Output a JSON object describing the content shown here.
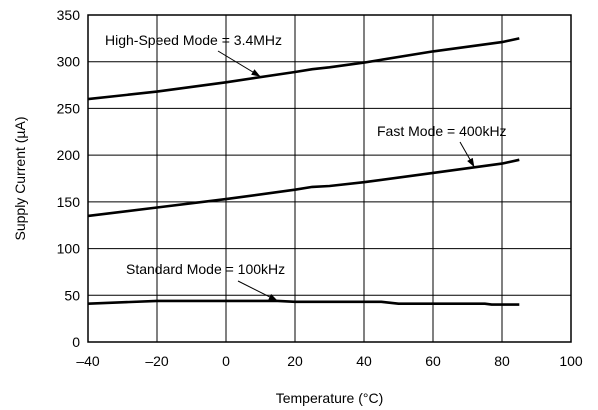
{
  "chart_data": {
    "type": "line",
    "title": "",
    "xlabel": "Temperature (°C)",
    "ylabel": "Supply Current (µA)",
    "xlim": [
      -40,
      100
    ],
    "ylim": [
      0,
      350
    ],
    "xticks": [
      -40,
      -20,
      0,
      20,
      40,
      60,
      80,
      100
    ],
    "xtick_labels": [
      "–40",
      "–20",
      "0",
      "20",
      "40",
      "60",
      "80",
      "100"
    ],
    "yticks": [
      0,
      50,
      100,
      150,
      200,
      250,
      300,
      350
    ],
    "ytick_labels": [
      "0",
      "50",
      "100",
      "150",
      "200",
      "250",
      "300",
      "350"
    ],
    "grid": true,
    "legend": "none",
    "series": [
      {
        "name": "High-Speed Mode = 3.4MHz",
        "x": [
          -40,
          -20,
          0,
          20,
          25,
          30,
          40,
          60,
          80,
          85
        ],
        "y": [
          260,
          268,
          278,
          289,
          292,
          294,
          299,
          311,
          321,
          325
        ]
      },
      {
        "name": "Fast Mode = 400kHz",
        "x": [
          -40,
          -20,
          0,
          20,
          25,
          30,
          40,
          60,
          80,
          85
        ],
        "y": [
          135,
          144,
          153,
          163,
          166,
          167,
          171,
          181,
          191,
          195
        ]
      },
      {
        "name": "Standard Mode = 100kHz",
        "x": [
          -40,
          -20,
          0,
          15,
          20,
          40,
          45,
          50,
          60,
          75,
          77,
          85
        ],
        "y": [
          41,
          44,
          44,
          44,
          43,
          43,
          43,
          41,
          41,
          41,
          40,
          40
        ]
      }
    ],
    "annotations": [
      {
        "text": "High-Speed Mode = 3.4MHz",
        "series": 0,
        "arrow_x": 10,
        "arrow_y": 284
      },
      {
        "text": "Fast Mode = 400kHz",
        "series": 1,
        "arrow_x": 72,
        "arrow_y": 187
      },
      {
        "text": "Standard Mode = 100kHz",
        "series": 2,
        "arrow_x": 15,
        "arrow_y": 44
      }
    ]
  }
}
